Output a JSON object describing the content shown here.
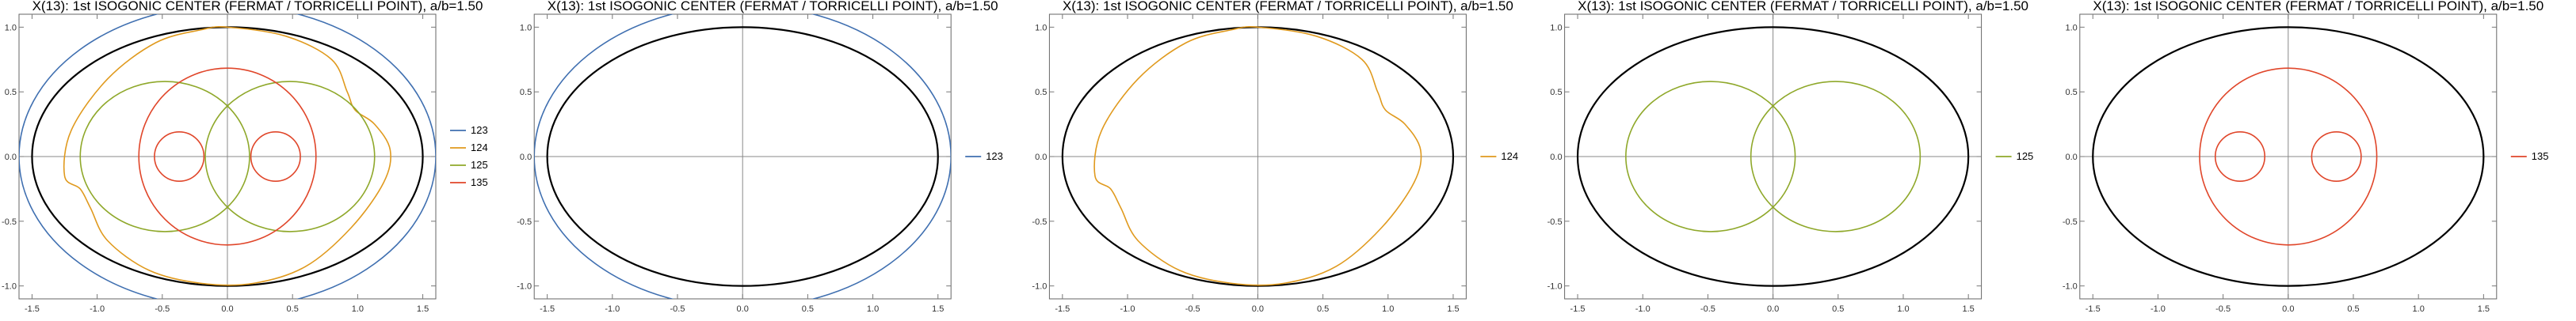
{
  "colors": {
    "123": "#3f6fb0",
    "124": "#e09a1e",
    "125": "#8fa82a",
    "135": "#e0462a",
    "ellipse": "#000000"
  },
  "chart_data": [
    {
      "type": "line",
      "title": "X(13): 1st ISOGONIC CENTER (FERMAT / TORRICELLI POINT), a/b=1.50",
      "xlim": [
        -1.6,
        1.6
      ],
      "ylim": [
        -1.1,
        1.1
      ],
      "xticks": [
        "-1.5",
        "-1.0",
        "-0.5",
        "0.0",
        "0.5",
        "1.0",
        "1.5"
      ],
      "yticks": [
        "-1.0",
        "-0.5",
        "0.0",
        "0.5",
        "1.0"
      ],
      "ellipse": {
        "a": 1.5,
        "b": 1.0
      },
      "legend": [
        "123",
        "124",
        "125",
        "135"
      ],
      "series": [
        {
          "name": "123",
          "curve": "ellipse",
          "a": 1.6,
          "b": 1.17
        },
        {
          "name": "124",
          "curve": "pear",
          "points": [
            [
              0.0,
              1.0
            ],
            [
              0.45,
              0.93
            ],
            [
              0.8,
              0.75
            ],
            [
              0.92,
              0.5
            ],
            [
              0.98,
              0.36
            ],
            [
              1.13,
              0.25
            ],
            [
              1.25,
              0.05
            ],
            [
              1.2,
              -0.2
            ],
            [
              0.95,
              -0.55
            ],
            [
              0.6,
              -0.85
            ],
            [
              0.2,
              -0.98
            ],
            [
              -0.2,
              -0.98
            ],
            [
              -0.6,
              -0.88
            ],
            [
              -0.92,
              -0.65
            ],
            [
              -1.05,
              -0.4
            ],
            [
              -1.13,
              -0.25
            ],
            [
              -1.25,
              -0.15
            ],
            [
              -1.2,
              0.2
            ],
            [
              -0.92,
              0.6
            ],
            [
              -0.55,
              0.88
            ],
            [
              -0.2,
              0.98
            ]
          ]
        },
        {
          "name": "125",
          "curve": "ovals",
          "cx": 0.48,
          "cy": 0.0,
          "rx": 0.65,
          "ry": 0.58
        },
        {
          "name": "135",
          "curve": "ovals-loop",
          "cx": 0.0,
          "cy": 0.0,
          "rx": 0.68,
          "ry": 0.68,
          "sx": 0.37,
          "sr": 0.19
        }
      ]
    },
    {
      "type": "line",
      "title": "X(13): 1st ISOGONIC CENTER (FERMAT / TORRICELLI POINT), a/b=1.50",
      "xlim": [
        -1.6,
        1.6
      ],
      "ylim": [
        -1.1,
        1.1
      ],
      "xticks": [
        "-1.5",
        "-1.0",
        "-0.5",
        "0.0",
        "0.5",
        "1.0",
        "1.5"
      ],
      "yticks": [
        "-1.0",
        "-0.5",
        "0.0",
        "0.5",
        "1.0"
      ],
      "ellipse": {
        "a": 1.5,
        "b": 1.0
      },
      "legend": [
        "123"
      ],
      "series": [
        {
          "name": "123",
          "curve": "ellipse",
          "a": 1.6,
          "b": 1.17
        }
      ]
    },
    {
      "type": "line",
      "title": "X(13): 1st ISOGONIC CENTER (FERMAT / TORRICELLI POINT), a/b=1.50",
      "xlim": [
        -1.6,
        1.6
      ],
      "ylim": [
        -1.1,
        1.1
      ],
      "xticks": [
        "-1.5",
        "-1.0",
        "-0.5",
        "0.0",
        "0.5",
        "1.0",
        "1.5"
      ],
      "yticks": [
        "-1.0",
        "-0.5",
        "0.0",
        "0.5",
        "1.0"
      ],
      "ellipse": {
        "a": 1.5,
        "b": 1.0
      },
      "legend": [
        "124"
      ],
      "series": [
        {
          "name": "124",
          "curve": "pear",
          "points": [
            [
              0.0,
              1.0
            ],
            [
              0.45,
              0.93
            ],
            [
              0.8,
              0.75
            ],
            [
              0.92,
              0.5
            ],
            [
              0.98,
              0.36
            ],
            [
              1.13,
              0.25
            ],
            [
              1.25,
              0.05
            ],
            [
              1.2,
              -0.2
            ],
            [
              0.95,
              -0.55
            ],
            [
              0.6,
              -0.85
            ],
            [
              0.2,
              -0.98
            ],
            [
              -0.2,
              -0.98
            ],
            [
              -0.6,
              -0.88
            ],
            [
              -0.92,
              -0.65
            ],
            [
              -1.05,
              -0.4
            ],
            [
              -1.13,
              -0.25
            ],
            [
              -1.25,
              -0.15
            ],
            [
              -1.2,
              0.2
            ],
            [
              -0.92,
              0.6
            ],
            [
              -0.55,
              0.88
            ],
            [
              -0.2,
              0.98
            ]
          ]
        }
      ]
    },
    {
      "type": "line",
      "title": "X(13): 1st ISOGONIC CENTER (FERMAT / TORRICELLI POINT), a/b=1.50",
      "xlim": [
        -1.6,
        1.6
      ],
      "ylim": [
        -1.1,
        1.1
      ],
      "xticks": [
        "-1.5",
        "-1.0",
        "-0.5",
        "0.0",
        "0.5",
        "1.0",
        "1.5"
      ],
      "yticks": [
        "-1.0",
        "-0.5",
        "0.0",
        "0.5",
        "1.0"
      ],
      "ellipse": {
        "a": 1.5,
        "b": 1.0
      },
      "legend": [
        "125"
      ],
      "series": [
        {
          "name": "125",
          "curve": "ovals",
          "cx": 0.48,
          "cy": 0.0,
          "rx": 0.65,
          "ry": 0.58
        }
      ]
    },
    {
      "type": "line",
      "title": "X(13): 1st ISOGONIC CENTER (FERMAT / TORRICELLI POINT), a/b=1.50",
      "xlim": [
        -1.6,
        1.6
      ],
      "ylim": [
        -1.1,
        1.1
      ],
      "xticks": [
        "-1.5",
        "-1.0",
        "-0.5",
        "0.0",
        "0.5",
        "1.0",
        "1.5"
      ],
      "yticks": [
        "-1.0",
        "-0.5",
        "0.0",
        "0.5",
        "1.0"
      ],
      "ellipse": {
        "a": 1.5,
        "b": 1.0
      },
      "legend": [
        "135"
      ],
      "series": [
        {
          "name": "135",
          "curve": "ovals-loop",
          "cx": 0.0,
          "cy": 0.0,
          "rx": 0.68,
          "ry": 0.68,
          "sx": 0.37,
          "sr": 0.19
        }
      ]
    }
  ]
}
